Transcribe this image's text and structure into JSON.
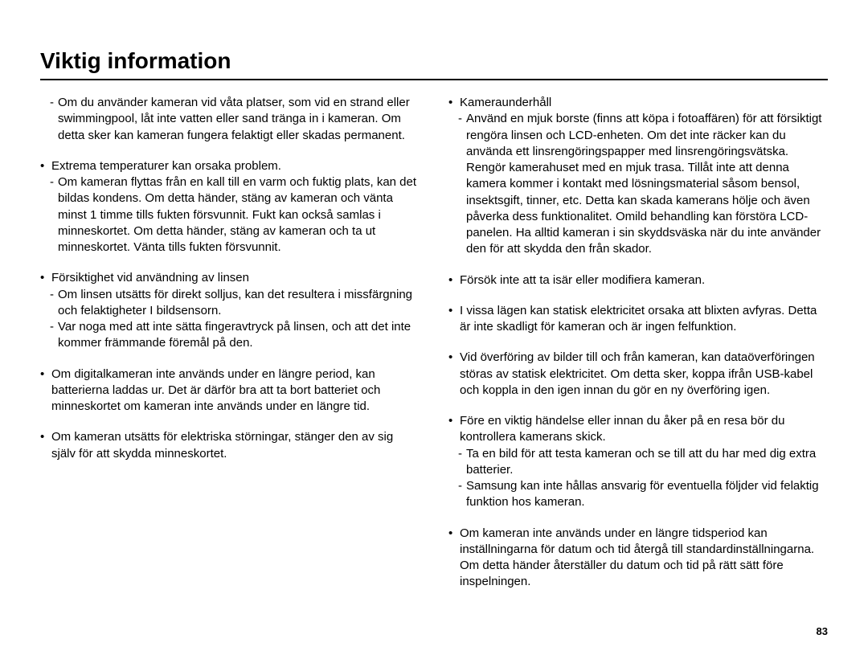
{
  "title": "Viktig information",
  "pageNumber": "83",
  "left": {
    "item0_sub0": "Om du använder kameran vid våta platser, som vid en strand eller swimmingpool, låt inte vatten eller sand tränga in i kameran. Om detta sker kan kameran fungera felaktigt eller skadas permanent.",
    "item1_head": "Extrema temperaturer kan orsaka problem.",
    "item1_sub0": "Om kameran flyttas från en kall till en varm och fuktig plats, kan det bildas kondens. Om detta händer, stäng av kameran och vänta minst 1 timme tills fukten försvunnit. Fukt kan också samlas i minneskortet. Om detta händer, stäng av kameran och ta ut minneskortet. Vänta tills fukten försvunnit.",
    "item2_head": "Försiktighet vid användning av linsen",
    "item2_sub0": "Om linsen utsätts för direkt solljus, kan det resultera i missfärgning och felaktigheter I bildsensorn.",
    "item2_sub1": "Var noga med att inte sätta fingeravtryck på linsen, och att det inte kommer främmande föremål på den.",
    "item3_head": "Om digitalkameran inte används under en längre period, kan batterierna laddas ur. Det är därför bra att ta bort batteriet och minneskortet om kameran inte används under en längre tid.",
    "item4_head": "Om kameran utsätts för elektriska störningar, stänger den av sig själv för att skydda minneskortet."
  },
  "right": {
    "item0_head": "Kameraunderhåll",
    "item0_sub0": "Använd en mjuk borste (finns att köpa i fotoaffären) för att försiktigt rengöra linsen och LCD-enheten. Om det inte räcker kan du använda ett linsrengöringspapper med linsrengöringsvätska. Rengör kamerahuset med en mjuk trasa. Tillåt inte att denna kamera kommer i kontakt med lösningsmaterial såsom bensol, insektsgift, tinner, etc. Detta kan skada kamerans hölje och även påverka dess funktionalitet. Omild behandling kan förstöra LCD-panelen. Ha alltid kameran i sin skyddsväska när du inte använder den för att skydda den från skador.",
    "item1_head": "Försök inte att ta isär eller modifiera kameran.",
    "item2_head": "I vissa lägen kan statisk elektricitet orsaka att blixten avfyras. Detta är inte skadligt för kameran och är ingen felfunktion.",
    "item3_head": "Vid överföring av bilder till och från kameran, kan dataöverföringen störas av statisk elektricitet. Om detta sker, koppa ifrån USB-kabel och koppla in den igen innan du gör en ny överföring igen.",
    "item4_head": "Före en viktig händelse eller innan du åker på en resa bör du kontrollera kamerans skick.",
    "item4_sub0": "Ta en bild för att testa kameran och se till att du har med dig extra batterier.",
    "item4_sub1": "Samsung kan inte hållas ansvarig för eventuella följder vid felaktig funktion hos kameran.",
    "item5_head": "Om kameran inte används under en längre tidsperiod kan inställningarna för datum och tid återgå till standardinställningarna. Om detta händer återställer du datum och tid på rätt sätt före inspelningen."
  }
}
